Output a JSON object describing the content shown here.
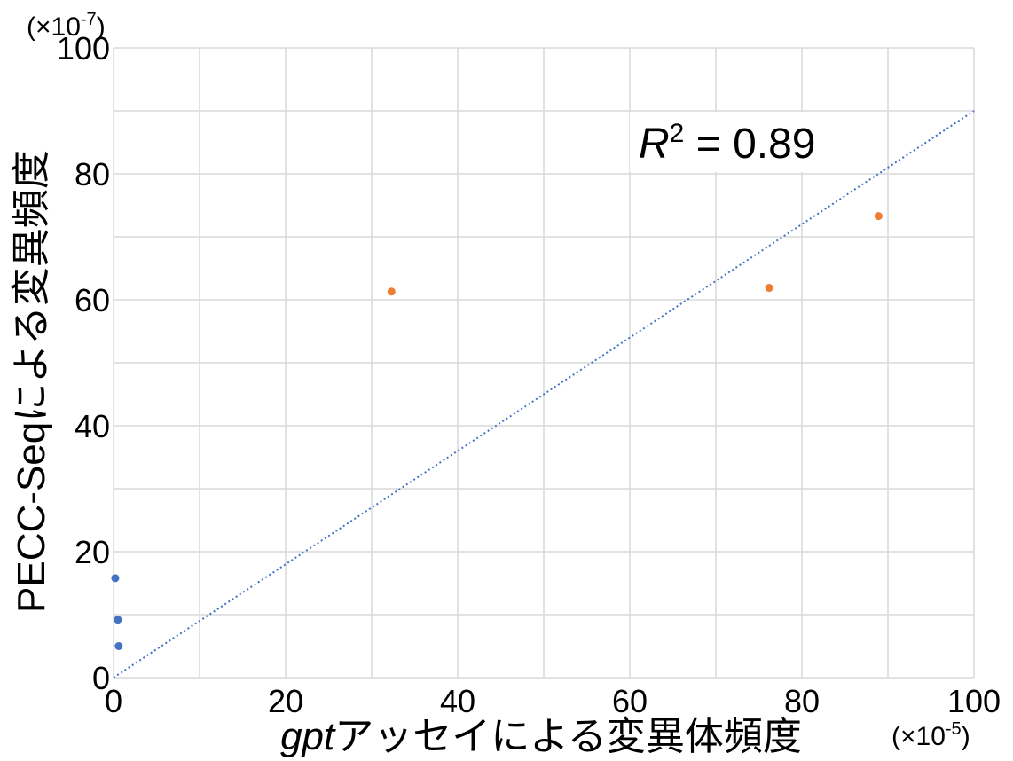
{
  "chart_data": {
    "type": "scatter",
    "title": "",
    "xlabel_italic": "gpt",
    "xlabel_rest": "アッセイによる変異体頻度",
    "ylabel": "PECC-Seqによる変異頻度",
    "x_unit": "(×10",
    "x_unit_exp": "-5",
    "x_unit_close": ")",
    "y_unit": "(×10",
    "y_unit_exp": "-7",
    "y_unit_close": ")",
    "xlim": [
      0,
      100
    ],
    "ylim": [
      0,
      100
    ],
    "x_ticks": [
      0,
      20,
      40,
      60,
      80,
      100
    ],
    "y_ticks": [
      0,
      20,
      40,
      60,
      80,
      100
    ],
    "grid": true,
    "series": [
      {
        "color": "#4472C4",
        "points": [
          [
            0.2,
            15.8
          ],
          [
            0.5,
            9.2
          ],
          [
            0.6,
            5.0
          ]
        ]
      },
      {
        "color": "#ED7D31",
        "points": [
          [
            32.3,
            61.3
          ],
          [
            76.2,
            61.9
          ],
          [
            88.9,
            73.3
          ]
        ]
      }
    ],
    "trendline": {
      "from": [
        0,
        0
      ],
      "to": [
        100,
        90
      ],
      "color": "#4472C4",
      "style": "dotted"
    },
    "annotation": {
      "label": "R",
      "sup": "2",
      "text": " = 0.89"
    }
  }
}
